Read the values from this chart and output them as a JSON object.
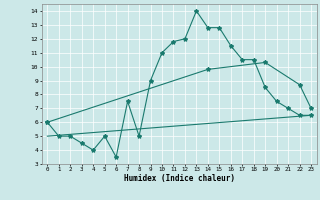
{
  "line1_x": [
    0,
    1,
    2,
    3,
    4,
    5,
    6,
    7,
    8,
    9,
    10,
    11,
    12,
    13,
    14,
    15,
    16,
    17,
    18,
    19,
    20,
    21,
    22,
    23
  ],
  "line1_y": [
    6.0,
    5.0,
    5.0,
    4.5,
    4.0,
    5.0,
    3.5,
    7.5,
    5.0,
    9.0,
    11.0,
    11.8,
    12.0,
    14.0,
    12.8,
    12.8,
    11.5,
    10.5,
    10.5,
    8.5,
    7.5,
    7.0,
    6.5,
    6.5
  ],
  "line2_x": [
    0,
    14,
    19,
    22,
    23
  ],
  "line2_y": [
    6.0,
    9.8,
    10.3,
    8.7,
    7.0
  ],
  "line3_x": [
    0,
    23
  ],
  "line3_y": [
    5.0,
    6.5
  ],
  "line_color": "#1a7a6e",
  "bg_color": "#cce8e8",
  "grid_color": "#ffffff",
  "xlabel": "Humidex (Indice chaleur)",
  "ylim": [
    3,
    14.5
  ],
  "xlim": [
    -0.5,
    23.5
  ],
  "yticks": [
    3,
    4,
    5,
    6,
    7,
    8,
    9,
    10,
    11,
    12,
    13,
    14
  ],
  "xticks": [
    0,
    1,
    2,
    3,
    4,
    5,
    6,
    7,
    8,
    9,
    10,
    11,
    12,
    13,
    14,
    15,
    16,
    17,
    18,
    19,
    20,
    21,
    22,
    23
  ]
}
